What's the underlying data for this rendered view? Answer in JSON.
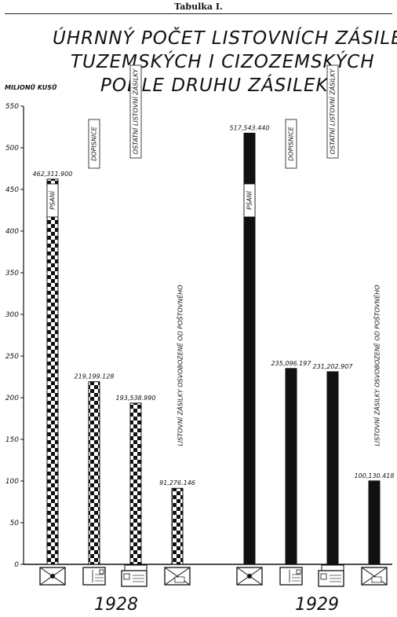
{
  "page": {
    "title": "Tabulka I."
  },
  "chart_data": {
    "type": "bar",
    "title_lines": [
      "ÚHRNNÝ POČET LISTOVNÍCH ZÁSILEK",
      "TUZEMSKÝCH I CIZOZEMSKÝCH",
      "PODLE DRUHU ZÁSILEK"
    ],
    "ylabel": "MILIONŮ KUSŮ",
    "ylim": [
      0,
      550
    ],
    "yticks": [
      0,
      50,
      100,
      150,
      200,
      250,
      300,
      350,
      400,
      450,
      500,
      550
    ],
    "grid": false,
    "groups": [
      {
        "year": "1928",
        "pattern": "checker",
        "bars": [
          {
            "category": "PSANÍ",
            "value": 462311900,
            "value_label": "462,311.900",
            "icon": "sealed-envelope-icon"
          },
          {
            "category": "DOPISNICE",
            "value": 219199128,
            "value_label": "219,199.128",
            "icon": "postcard-icon"
          },
          {
            "category": "OSTATNÍ LISTOVNÍ ZÁSILKY",
            "value": 193538990,
            "value_label": "193,538.990",
            "icon": "other-mail-bundle-icon"
          },
          {
            "category": "LISTOVNÍ ZÁSILKY OSVOBOZENÉ OD POŠTOVNÉHO",
            "value": 91276146,
            "value_label": "91,276.146",
            "icon": "franchised-envelope-icon"
          }
        ]
      },
      {
        "year": "1929",
        "pattern": "solid",
        "bars": [
          {
            "category": "PSANÍ",
            "value": 517543440,
            "value_label": "517,543.440",
            "icon": "sealed-envelope-icon"
          },
          {
            "category": "DOPISNICE",
            "value": 235096197,
            "value_label": "235,096.197",
            "icon": "postcard-icon"
          },
          {
            "category": "OSTATNÍ LISTOVNÍ ZÁSILKY",
            "value": 231202907,
            "value_label": "231,202.907",
            "icon": "other-mail-bundle-icon"
          },
          {
            "category": "LISTOVNÍ ZÁSILKY OSVOBOZENÉ OD POŠTOVNÉHO",
            "value": 100130418,
            "value_label": "100,130.418",
            "icon": "franchised-envelope-icon"
          }
        ]
      }
    ],
    "colors": {
      "ink": "#111111",
      "paper": "#ffffff"
    }
  }
}
